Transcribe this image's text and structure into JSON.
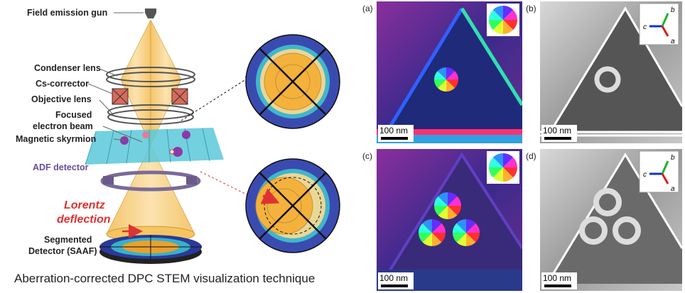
{
  "diagram": {
    "labels": {
      "gun": "Field emission gun",
      "condenser": "Condenser lens",
      "corrector": "Cs-corrector",
      "objective": "Objective lens",
      "beam": [
        "Focused",
        "electron beam"
      ],
      "skyrmion": "Magnetic skyrmion",
      "adf": "ADF detector",
      "lorentz": [
        "Lorentz",
        "deflection"
      ],
      "detector": [
        "Segmented",
        "Detector (SAAF)"
      ]
    },
    "caption": "Aberration-corrected DPC STEM visualization technique"
  },
  "panels": [
    {
      "label": "(a)",
      "scale_bar": "100 nm"
    },
    {
      "label": "(b)",
      "scale_bar": "100 nm",
      "axes": [
        "c",
        "b",
        "a"
      ]
    },
    {
      "label": "(c)",
      "scale_bar": "100 nm"
    },
    {
      "label": "(d)",
      "scale_bar": "100 nm",
      "axes": [
        "c",
        "b",
        "a"
      ]
    }
  ]
}
